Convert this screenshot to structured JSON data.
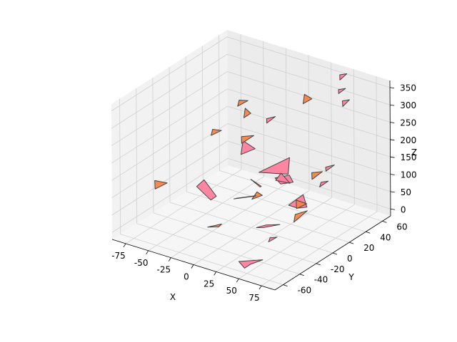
{
  "chart_data": {
    "type": "3d-polygons",
    "title": "",
    "xlabel": "X",
    "ylabel": "Y",
    "zlabel": "Z",
    "xticks": [
      -75,
      -50,
      -25,
      0,
      25,
      50,
      75
    ],
    "yticks": [
      -60,
      -40,
      -20,
      0,
      20,
      40,
      60
    ],
    "zticks": [
      0,
      50,
      100,
      150,
      200,
      250,
      300,
      350
    ],
    "grid": true,
    "colors": {
      "pink": "#ff7f9e",
      "orange": "#f5844a",
      "edge": "#444444",
      "pane_left": "#f2f2f2",
      "pane_right": "#ececec",
      "pane_floor": "#f6f6f6",
      "grid": "#d0d0d0"
    },
    "polygons": [
      {
        "name": "polygon-1",
        "color": "pink",
        "vertices": [
          [
            -42,
            -20,
            95
          ],
          [
            -32,
            -14,
            55
          ],
          [
            -22,
            -18,
            80
          ],
          [
            -30,
            -24,
            130
          ]
        ]
      },
      {
        "name": "polygon-2",
        "color": "orange",
        "vertices": [
          [
            -8,
            -44,
            42
          ],
          [
            2,
            -38,
            50
          ],
          [
            -5,
            -34,
            30
          ]
        ]
      },
      {
        "name": "polygon-3",
        "color": "pink",
        "vertices": [
          [
            -10,
            -10,
            70
          ],
          [
            10,
            -6,
            88
          ],
          [
            18,
            -14,
            108
          ],
          [
            0,
            -18,
            92
          ]
        ]
      },
      {
        "name": "polygon-4",
        "color": "orange",
        "vertices": [
          [
            12,
            -6,
            102
          ],
          [
            16,
            -4,
            92
          ],
          [
            10,
            -10,
            85
          ]
        ]
      },
      {
        "name": "polygon-5",
        "color": "pink",
        "vertices": [
          [
            -24,
            14,
            150
          ],
          [
            -10,
            16,
            175
          ],
          [
            -16,
            8,
            205
          ]
        ]
      },
      {
        "name": "polygon-6",
        "color": "pink",
        "vertices": [
          [
            -6,
            16,
            110
          ],
          [
            28,
            16,
            180
          ],
          [
            30,
            12,
            140
          ]
        ]
      },
      {
        "name": "polygon-7",
        "color": "pink",
        "vertices": [
          [
            30,
            -18,
            32
          ],
          [
            50,
            -20,
            60
          ],
          [
            38,
            -24,
            55
          ],
          [
            24,
            -20,
            30
          ]
        ]
      },
      {
        "name": "polygon-8",
        "color": "pink",
        "vertices": [
          [
            40,
            -14,
            170
          ],
          [
            48,
            -16,
            200
          ],
          [
            54,
            -12,
            170
          ]
        ]
      },
      {
        "name": "polygon-9",
        "color": "pink",
        "vertices": [
          [
            10,
            18,
            104
          ],
          [
            24,
            20,
            120
          ],
          [
            30,
            18,
            108
          ],
          [
            18,
            16,
            96
          ]
        ]
      },
      {
        "name": "polygon-10",
        "color": "pink",
        "vertices": [
          [
            34,
            8,
            60
          ],
          [
            52,
            6,
            108
          ],
          [
            58,
            4,
            80
          ],
          [
            42,
            10,
            55
          ]
        ]
      },
      {
        "name": "polygon-11",
        "color": "orange",
        "vertices": [
          [
            48,
            2,
            95
          ],
          [
            56,
            6,
            85
          ],
          [
            52,
            -2,
            80
          ]
        ]
      },
      {
        "name": "polygon-12",
        "color": "orange",
        "vertices": [
          [
            -4,
            4,
            110
          ],
          [
            10,
            0,
            105
          ],
          [
            4,
            8,
            90
          ]
        ]
      },
      {
        "name": "polygon-13",
        "color": "pink",
        "vertices": [
          [
            30,
            -48,
            -20
          ],
          [
            62,
            -54,
            20
          ],
          [
            52,
            -58,
            5
          ],
          [
            40,
            -52,
            -25
          ]
        ]
      },
      {
        "name": "polygon-14",
        "color": "orange",
        "vertices": [
          [
            -70,
            -40,
            120
          ],
          [
            -60,
            -36,
            115
          ],
          [
            -66,
            -44,
            105
          ]
        ]
      },
      {
        "name": "polygon-15",
        "color": "orange",
        "vertices": [
          [
            -46,
            4,
            220
          ],
          [
            -38,
            6,
            220
          ],
          [
            -44,
            0,
            210
          ]
        ]
      },
      {
        "name": "polygon-16",
        "color": "orange",
        "vertices": [
          [
            -30,
            26,
            260
          ],
          [
            -22,
            24,
            255
          ],
          [
            -26,
            20,
            245
          ]
        ]
      },
      {
        "name": "polygon-17",
        "color": "orange",
        "vertices": [
          [
            -44,
            34,
            260
          ],
          [
            -36,
            36,
            262
          ],
          [
            -42,
            30,
            250
          ]
        ]
      },
      {
        "name": "polygon-18",
        "color": "orange",
        "vertices": [
          [
            -16,
            6,
            220
          ],
          [
            -6,
            10,
            225
          ],
          [
            -12,
            2,
            210
          ]
        ]
      },
      {
        "name": "polygon-19",
        "color": "pink",
        "vertices": [
          [
            -10,
            30,
            240
          ],
          [
            -4,
            34,
            245
          ],
          [
            -8,
            28,
            232
          ]
        ]
      },
      {
        "name": "polygon-20",
        "color": "orange",
        "vertices": [
          [
            10,
            54,
            290
          ],
          [
            20,
            52,
            288
          ],
          [
            14,
            48,
            275
          ]
        ]
      },
      {
        "name": "polygon-21",
        "color": "pink",
        "vertices": [
          [
            40,
            64,
            355
          ],
          [
            46,
            66,
            360
          ],
          [
            42,
            62,
            345
          ]
        ]
      },
      {
        "name": "polygon-22",
        "color": "pink",
        "vertices": [
          [
            44,
            58,
            325
          ],
          [
            50,
            60,
            330
          ],
          [
            46,
            56,
            318
          ]
        ]
      },
      {
        "name": "polygon-23",
        "color": "pink",
        "vertices": [
          [
            52,
            54,
            305
          ],
          [
            58,
            56,
            310
          ],
          [
            56,
            50,
            298
          ]
        ]
      },
      {
        "name": "polygon-24",
        "color": "orange",
        "vertices": [
          [
            58,
            10,
            170
          ],
          [
            68,
            12,
            178
          ],
          [
            62,
            6,
            160
          ]
        ]
      },
      {
        "name": "polygon-25",
        "color": "pink",
        "vertices": [
          [
            68,
            16,
            185
          ],
          [
            74,
            20,
            190
          ],
          [
            70,
            14,
            178
          ]
        ]
      },
      {
        "name": "polygon-26",
        "color": "pink",
        "vertices": [
          [
            72,
            6,
            160
          ],
          [
            78,
            8,
            165
          ],
          [
            74,
            2,
            154
          ]
        ]
      },
      {
        "name": "polygon-27",
        "color": "pink",
        "vertices": [
          [
            50,
            -32,
            40
          ],
          [
            56,
            -30,
            44
          ],
          [
            52,
            -36,
            36
          ]
        ]
      },
      {
        "name": "polygon-28",
        "color": "orange",
        "vertices": [
          [
            78,
            -32,
            130
          ],
          [
            86,
            -26,
            138
          ],
          [
            82,
            -38,
            120
          ]
        ]
      }
    ]
  }
}
